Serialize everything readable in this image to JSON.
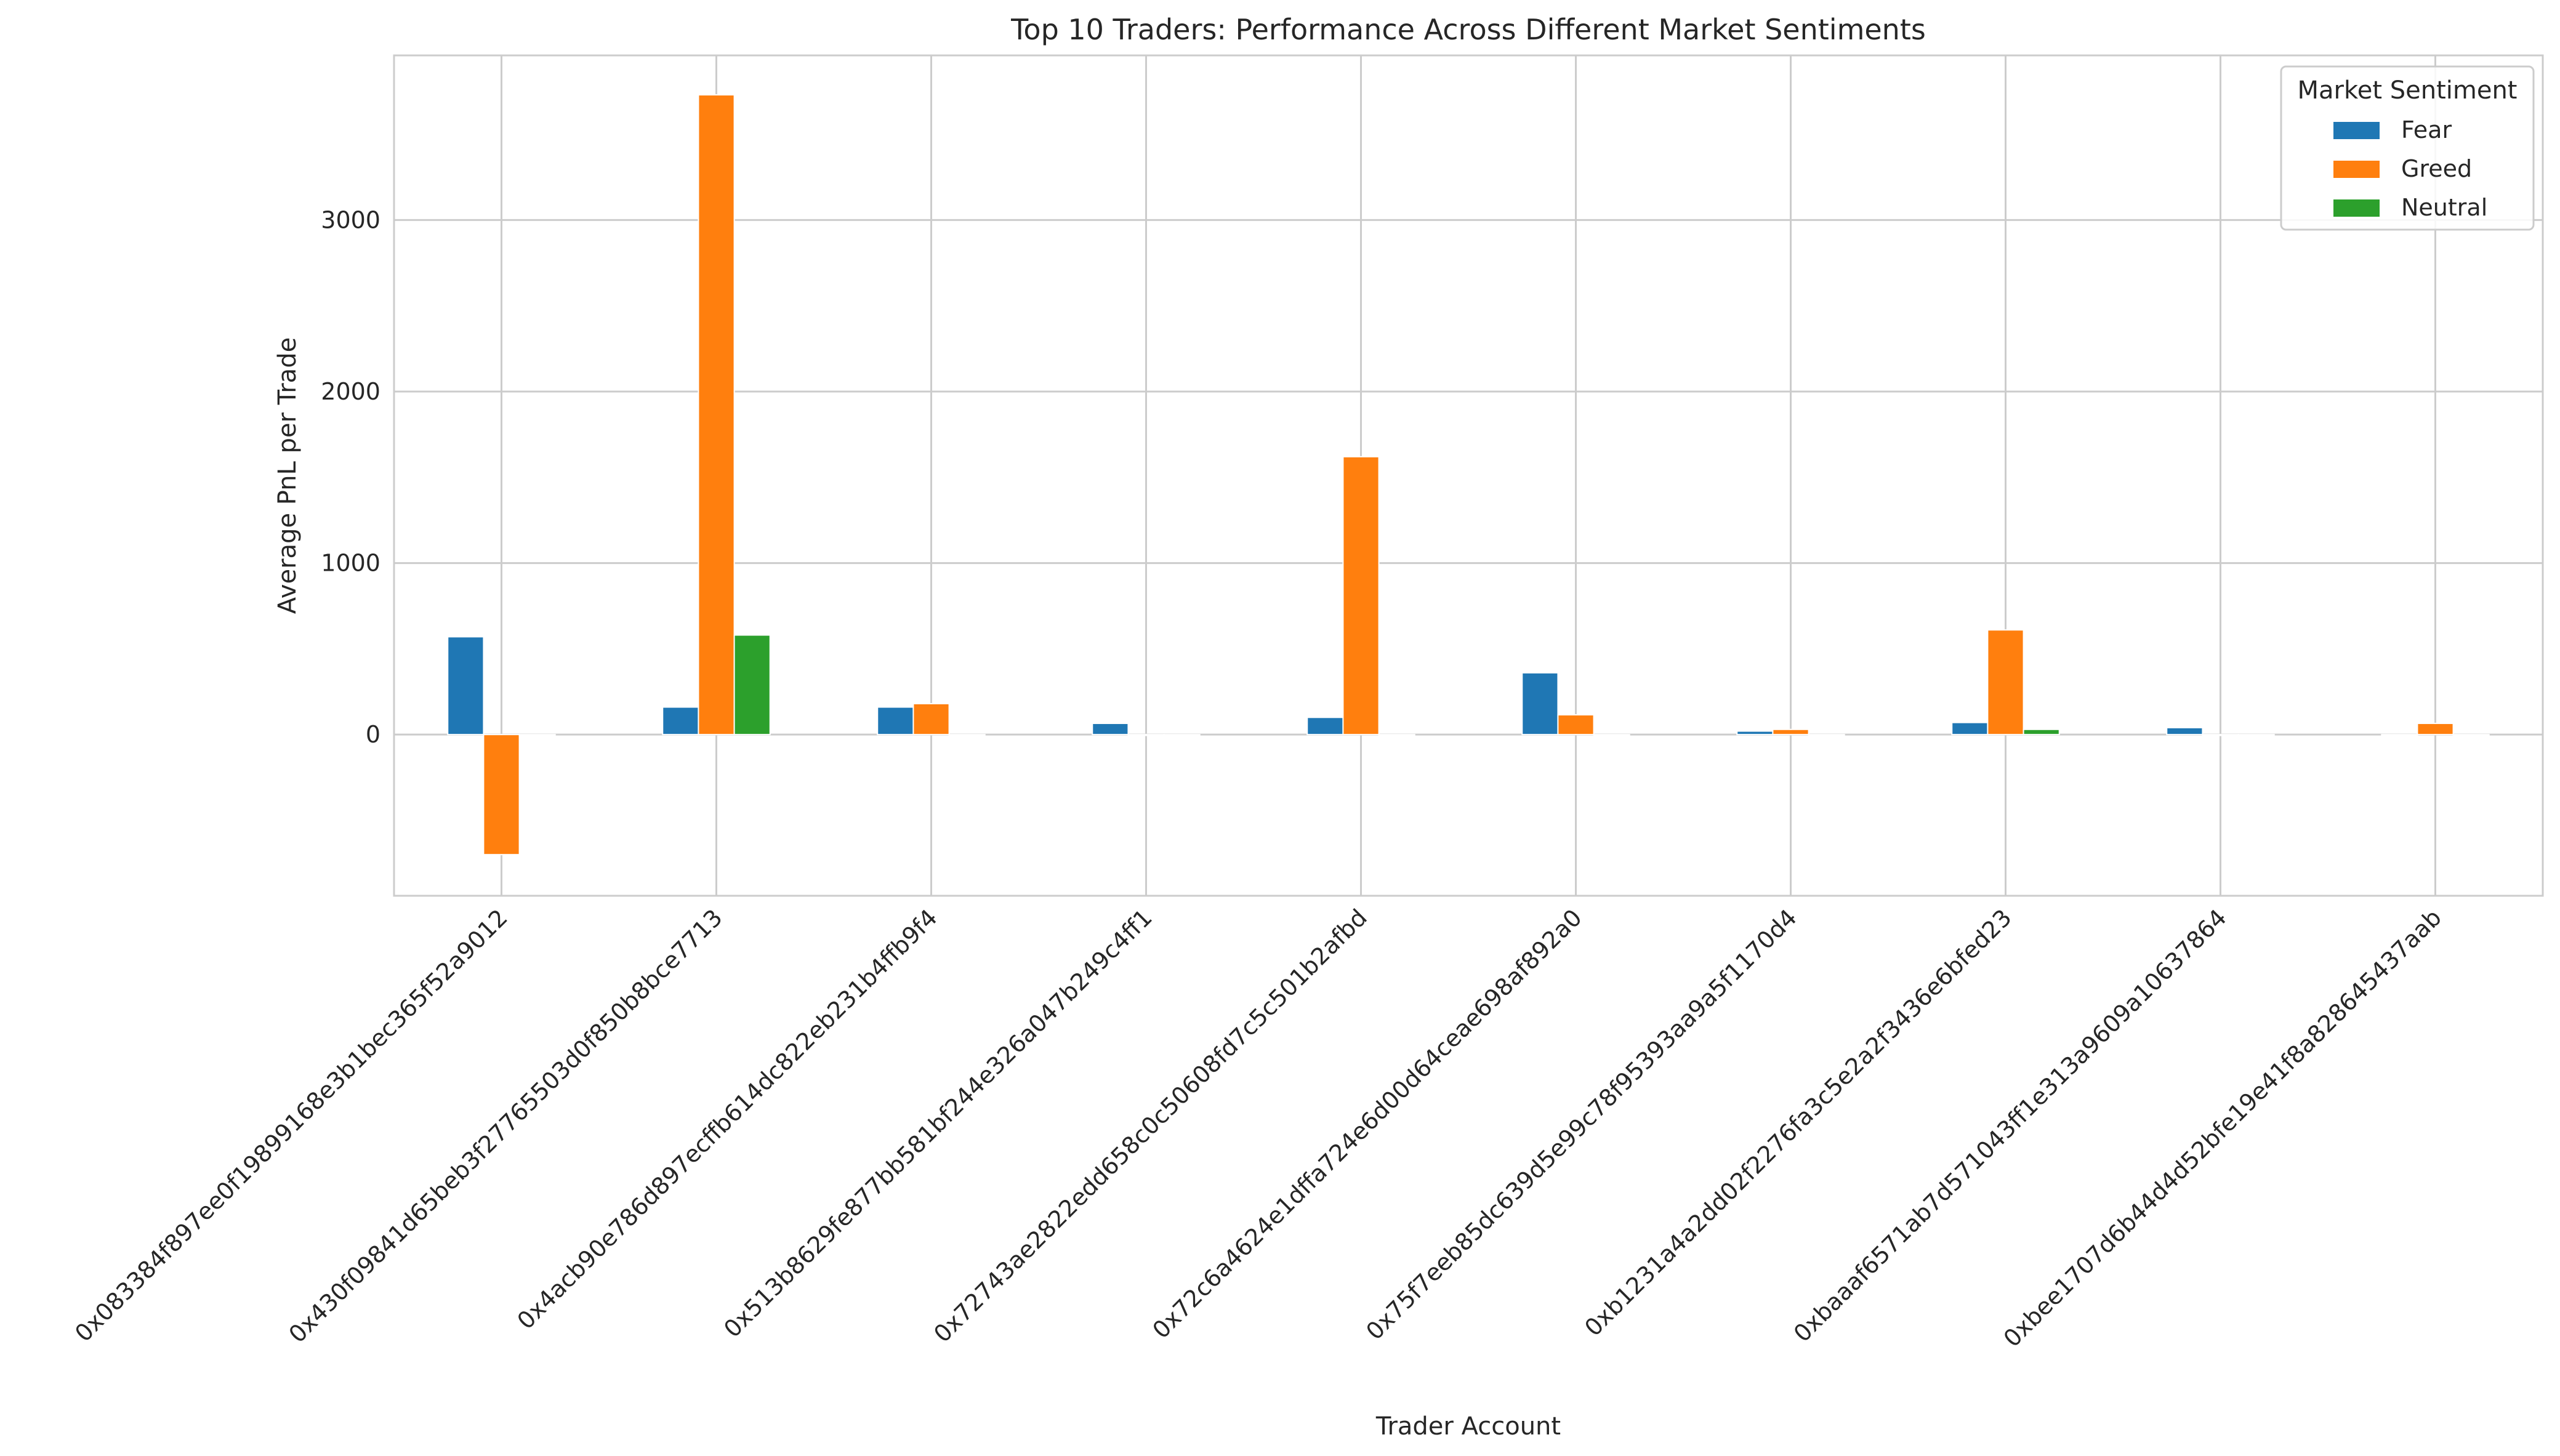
{
  "chart_data": {
    "type": "bar",
    "title": "Top 10 Traders: Performance Across Different Market Sentiments",
    "xlabel": "Trader Account",
    "ylabel": "Average PnL per Trade",
    "ylim": [
      -940,
      3960
    ],
    "yticks": [
      0,
      1000,
      2000,
      3000
    ],
    "grid": true,
    "legend": {
      "title": "Market Sentiment",
      "placement": "top-right"
    },
    "categories": [
      "0x083384f897ee0f19899168e3b1bec365f52a9012",
      "0x430f09841d65beb3f27765503d0f850b8bce7713",
      "0x4acb90e786d897ecffb614dc822eb231b4ffb9f4",
      "0x513b8629fe877bb581bf244e326a047b249c4ff1",
      "0x72743ae2822edd658c0c50608fd7c5c501b2afbd",
      "0x72c6a4624e1dffa724e6d00d64ceae698af892a0",
      "0x75f7eeb85dc639d5e99c78f95393aa9a5f1170d4",
      "0xb1231a4a2dd02f2276fa3c5e2a2f3436e6bfed23",
      "0xbaaaf6571ab7d571043ff1e313a9609a10637864",
      "0xbee1707d6b44d4d52bfe19e41f8a828645437aab"
    ],
    "series": [
      {
        "name": "Fear",
        "color": "#1f77b4",
        "values": [
          570,
          160,
          160,
          65,
          100,
          360,
          20,
          70,
          40,
          0
        ]
      },
      {
        "name": "Greed",
        "color": "#ff7f0e",
        "values": [
          -700,
          3730,
          180,
          0,
          1620,
          115,
          30,
          610,
          0,
          65
        ]
      },
      {
        "name": "Neutral",
        "color": "#2ca02c",
        "values": [
          0,
          580,
          0,
          0,
          0,
          0,
          0,
          30,
          0,
          0
        ]
      }
    ]
  }
}
